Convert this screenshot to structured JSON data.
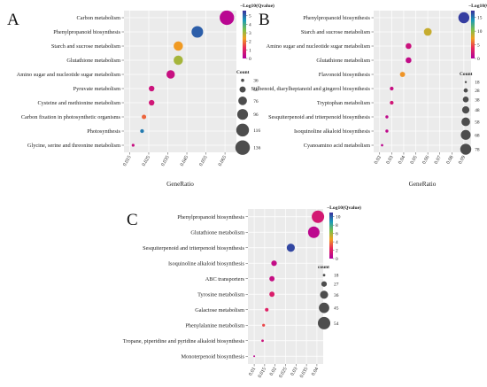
{
  "chart_data": [
    {
      "panel": "A",
      "type": "scatter",
      "title": "",
      "xlabel": "GeneRatio",
      "ylabel": "",
      "xlim": [
        0.012,
        0.071
      ],
      "xticks": [
        0.015,
        0.025,
        0.035,
        0.045,
        0.055,
        0.065
      ],
      "xtick_labels": [
        "0.015",
        "0.025",
        "0.035",
        "0.045",
        "0.055",
        "0.065"
      ],
      "grid": true,
      "color_legend": {
        "title": "−Log10(Qvalue)",
        "min": 0,
        "max": 5.6,
        "ticks": [
          0,
          1,
          2,
          3,
          4,
          5
        ],
        "tick_labels": [
          "0",
          "1",
          "2",
          "3",
          "4",
          "5"
        ]
      },
      "size_legend": {
        "title": "Count",
        "values": [
          36,
          56,
          76,
          96,
          116,
          136
        ],
        "labels": [
          "36",
          "56",
          "76",
          "96",
          "116",
          "136"
        ]
      },
      "points": [
        {
          "term": "Carbon metabolism",
          "gene_ratio": 0.066,
          "count": 135,
          "neg_log10_q": 0.2
        },
        {
          "term": "Phenylpropanoid biosynthesis",
          "gene_ratio": 0.0505,
          "count": 104,
          "neg_log10_q": 5.1
        },
        {
          "term": "Starch and sucrose metabolism",
          "gene_ratio": 0.0405,
          "count": 82,
          "neg_log10_q": 2.3
        },
        {
          "term": "Glutathione metabolism",
          "gene_ratio": 0.0405,
          "count": 82,
          "neg_log10_q": 3.0
        },
        {
          "term": "Amino sugar and nucleotide sugar metabolism",
          "gene_ratio": 0.0365,
          "count": 74,
          "neg_log10_q": 0.5
        },
        {
          "term": "Pyruvate metabolism",
          "gene_ratio": 0.0265,
          "count": 52,
          "neg_log10_q": 0.6
        },
        {
          "term": "Cysteine and methionine metabolism",
          "gene_ratio": 0.0265,
          "count": 52,
          "neg_log10_q": 0.7
        },
        {
          "term": "Carbon fixation in photosynthetic organisms",
          "gene_ratio": 0.0225,
          "count": 44,
          "neg_log10_q": 1.8
        },
        {
          "term": "Photosynthesis",
          "gene_ratio": 0.0215,
          "count": 40,
          "neg_log10_q": 4.8
        },
        {
          "term": "Glycine, serine and threonine metabolism",
          "gene_ratio": 0.0168,
          "count": 34,
          "neg_log10_q": 0.5
        }
      ]
    },
    {
      "panel": "B",
      "type": "scatter",
      "title": "",
      "xlabel": "GeneRatio",
      "ylabel": "",
      "xlim": [
        0.015,
        0.096
      ],
      "xticks": [
        0.02,
        0.03,
        0.04,
        0.05,
        0.06,
        0.07,
        0.08,
        0.09
      ],
      "xtick_labels": [
        "0.02",
        "0.03",
        "0.04",
        "0.05",
        "0.06",
        "0.07",
        "0.08",
        "0.09"
      ],
      "grid": true,
      "color_legend": {
        "title": "−Log10(Qvalue)",
        "min": 0,
        "max": 17.5,
        "ticks": [
          0,
          5,
          10,
          15
        ],
        "tick_labels": [
          "0",
          "5",
          "10",
          "15"
        ]
      },
      "size_legend": {
        "title": "Count",
        "values": [
          18,
          28,
          38,
          48,
          58,
          68,
          78
        ],
        "labels": [
          "18",
          "28",
          "38",
          "48",
          "58",
          "68",
          "78"
        ]
      },
      "points": [
        {
          "term": "Phenylpropanoid biosynthesis",
          "gene_ratio": 0.09,
          "count": 78,
          "neg_log10_q": 17
        },
        {
          "term": "Starch and sucrose metabolism",
          "gene_ratio": 0.06,
          "count": 52,
          "neg_log10_q": 8.5
        },
        {
          "term": "Amino sugar and nucleotide sugar metabolism",
          "gene_ratio": 0.044,
          "count": 38,
          "neg_log10_q": 1.8
        },
        {
          "term": "Glutathione metabolism",
          "gene_ratio": 0.044,
          "count": 38,
          "neg_log10_q": 1.2
        },
        {
          "term": "Flavonoid biosynthesis",
          "gene_ratio": 0.039,
          "count": 34,
          "neg_log10_q": 7.0
        },
        {
          "term": "Stilbenoid, diarylheptanoid and gingerol biosynthesis",
          "gene_ratio": 0.03,
          "count": 26,
          "neg_log10_q": 1.5
        },
        {
          "term": "Tryptophan metabolism",
          "gene_ratio": 0.03,
          "count": 26,
          "neg_log10_q": 2.2
        },
        {
          "term": "Sesquiterpenoid and triterpenoid biosynthesis",
          "gene_ratio": 0.026,
          "count": 22,
          "neg_log10_q": 1.0
        },
        {
          "term": "Isoquinoline alkaloid biosynthesis",
          "gene_ratio": 0.026,
          "count": 22,
          "neg_log10_q": 1.0
        },
        {
          "term": "Cyanoamino acid metabolism",
          "gene_ratio": 0.022,
          "count": 19,
          "neg_log10_q": 0.8
        }
      ]
    },
    {
      "panel": "C",
      "type": "scatter",
      "title": "",
      "xlabel": "GeneRatio",
      "ylabel": "",
      "xlim": [
        0.007,
        0.043
      ],
      "xticks": [
        0.01,
        0.015,
        0.02,
        0.025,
        0.03,
        0.035,
        0.04
      ],
      "xtick_labels": [
        "0.01",
        "0.015",
        "0.02",
        "0.025",
        "0.03",
        "0.035",
        "0.04"
      ],
      "grid": true,
      "color_legend": {
        "title": "−Log10(Qvalue)",
        "min": 0,
        "max": 11,
        "ticks": [
          0,
          2,
          4,
          6,
          8,
          10
        ],
        "tick_labels": [
          "0",
          "2",
          "4",
          "6",
          "8",
          "10"
        ]
      },
      "size_legend": {
        "title": "count",
        "values": [
          18,
          27,
          36,
          45,
          54
        ],
        "labels": [
          "18",
          "27",
          "36",
          "45",
          "54"
        ]
      },
      "points": [
        {
          "term": "Phenylpropanoid biosynthesis",
          "gene_ratio": 0.0405,
          "count": 54,
          "neg_log10_q": 1.5
        },
        {
          "term": "Glutathione metabolism",
          "gene_ratio": 0.0385,
          "count": 50,
          "neg_log10_q": 0.5
        },
        {
          "term": "Sesquiterpenoid and triterpenoid biosynthesis",
          "gene_ratio": 0.0275,
          "count": 36,
          "neg_log10_q": 10.5
        },
        {
          "term": "Isoquinoline alkaloid biosynthesis",
          "gene_ratio": 0.0195,
          "count": 27,
          "neg_log10_q": 0.8
        },
        {
          "term": "ABC transporters",
          "gene_ratio": 0.0185,
          "count": 26,
          "neg_log10_q": 0.9
        },
        {
          "term": "Tyrosine metabolism",
          "gene_ratio": 0.0185,
          "count": 26,
          "neg_log10_q": 1.8
        },
        {
          "term": "Galactose metabolism",
          "gene_ratio": 0.016,
          "count": 21,
          "neg_log10_q": 2.0
        },
        {
          "term": "Phenylalanine metabolism",
          "gene_ratio": 0.0145,
          "count": 19,
          "neg_log10_q": 3.0
        },
        {
          "term": "Tropane, piperidine and pyridine alkaloid biosynthesis",
          "gene_ratio": 0.014,
          "count": 18,
          "neg_log10_q": 1.2
        },
        {
          "term": "Monoterpenoid biosynthesis",
          "gene_ratio": 0.01,
          "count": 13,
          "neg_log10_q": 0.5
        }
      ]
    }
  ]
}
